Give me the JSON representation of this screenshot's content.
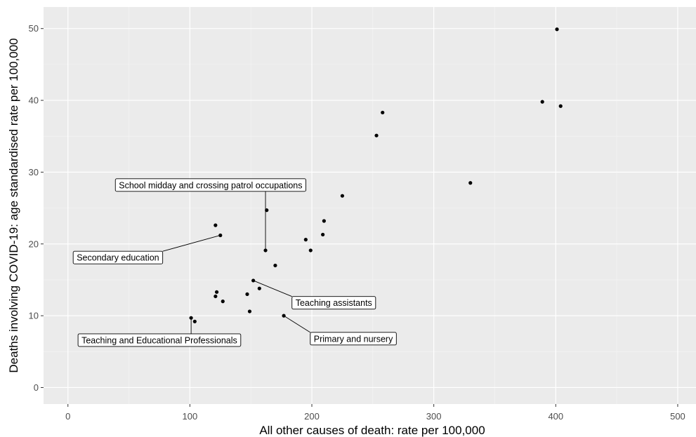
{
  "chart_data": {
    "type": "scatter",
    "xlabel": "All other causes of death: rate per 100,000",
    "ylabel": "Deaths involving COVID-19: age standardised rate per 100,000",
    "xlim": [
      -20,
      515
    ],
    "ylim": [
      -2.3,
      53
    ],
    "x_ticks": [
      0,
      100,
      200,
      300,
      400,
      500
    ],
    "y_ticks": [
      0,
      10,
      20,
      30,
      40,
      50
    ],
    "grid": true,
    "panel_background": "#ebebeb",
    "point_color": "#000000",
    "points": [
      {
        "x": 401,
        "y": 49.9
      },
      {
        "x": 389,
        "y": 39.8
      },
      {
        "x": 404,
        "y": 39.2
      },
      {
        "x": 258,
        "y": 38.3
      },
      {
        "x": 253,
        "y": 35.1
      },
      {
        "x": 330,
        "y": 28.5
      },
      {
        "x": 225,
        "y": 26.7
      },
      {
        "x": 163,
        "y": 24.7
      },
      {
        "x": 210,
        "y": 23.2
      },
      {
        "x": 121,
        "y": 22.6
      },
      {
        "x": 209,
        "y": 21.3
      },
      {
        "x": 125,
        "y": 21.2
      },
      {
        "x": 195,
        "y": 20.6
      },
      {
        "x": 162,
        "y": 19.1
      },
      {
        "x": 199,
        "y": 19.1
      },
      {
        "x": 170,
        "y": 17.0
      },
      {
        "x": 152,
        "y": 14.9
      },
      {
        "x": 157,
        "y": 13.8
      },
      {
        "x": 122,
        "y": 13.3
      },
      {
        "x": 147,
        "y": 13.0
      },
      {
        "x": 121,
        "y": 12.7
      },
      {
        "x": 127,
        "y": 12.0
      },
      {
        "x": 149,
        "y": 10.6
      },
      {
        "x": 177,
        "y": 10.0
      },
      {
        "x": 101,
        "y": 9.7
      },
      {
        "x": 104,
        "y": 9.2
      }
    ],
    "annotations": [
      {
        "text": "School midday and crossing patrol occupations",
        "x": 162,
        "y": 19.1,
        "label_x": 117,
        "label_y": 28.2
      },
      {
        "text": "Secondary education",
        "x": 125,
        "y": 21.2,
        "label_x": 41,
        "label_y": 18.1
      },
      {
        "text": "Teaching assistants",
        "x": 152,
        "y": 14.9,
        "label_x": 218,
        "label_y": 11.8
      },
      {
        "text": "Primary and nursery",
        "x": 177,
        "y": 10.0,
        "label_x": 234,
        "label_y": 6.8
      },
      {
        "text": "Teaching and Educational Professionals",
        "x": 101,
        "y": 9.7,
        "label_x": 75,
        "label_y": 6.6
      }
    ]
  }
}
